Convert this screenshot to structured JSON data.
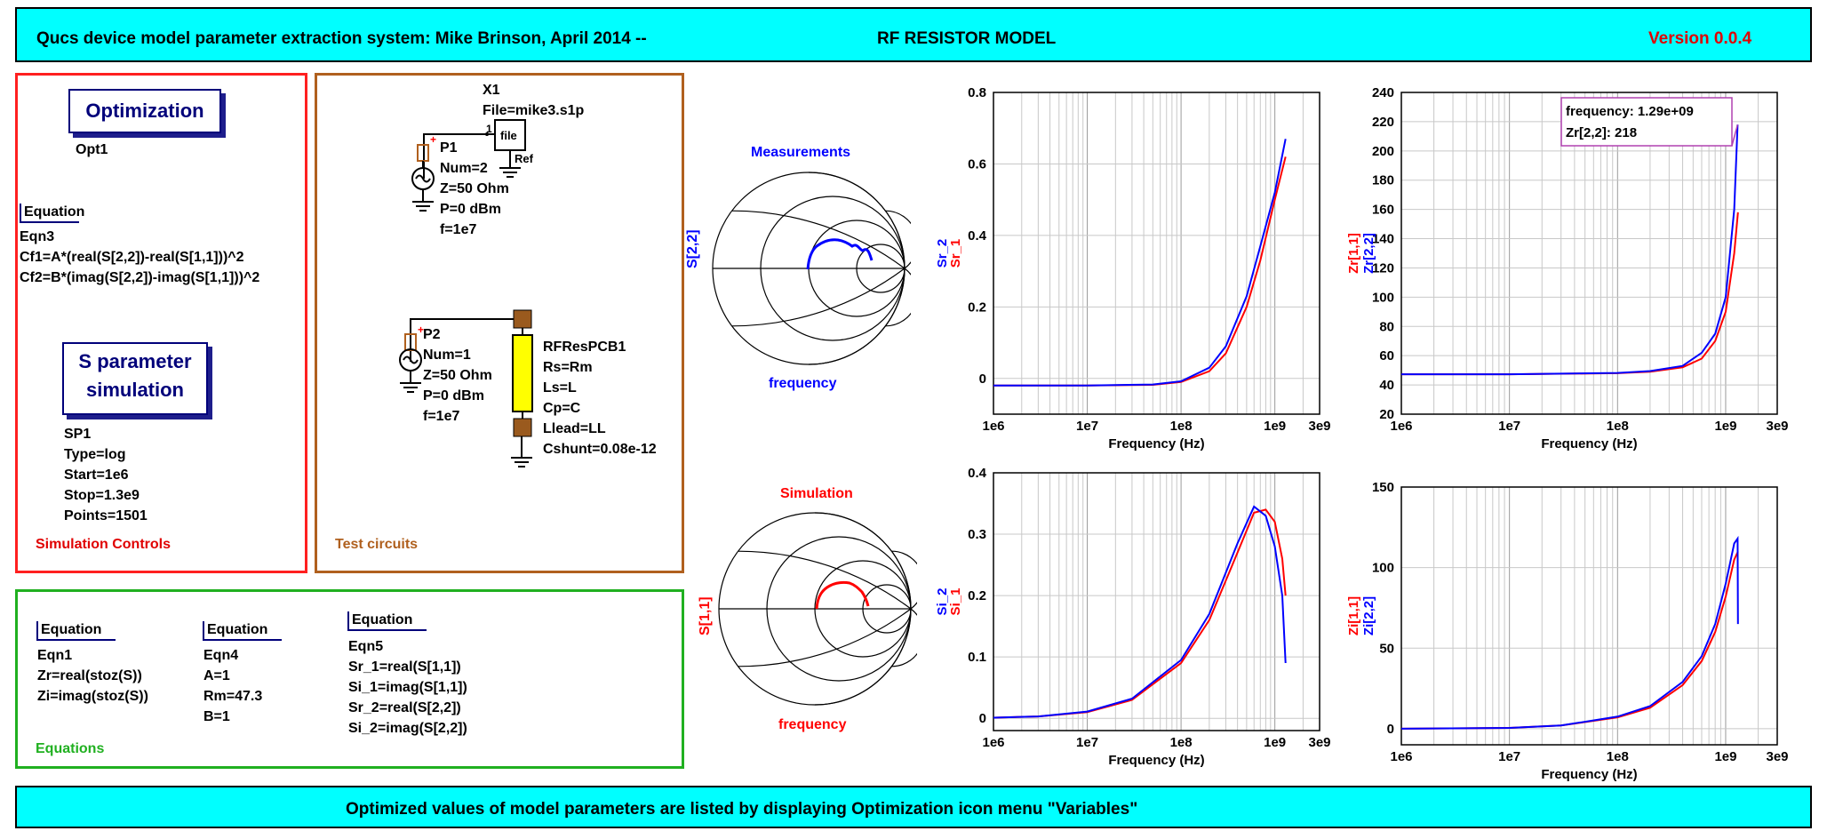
{
  "header": {
    "title": "Qucs device model parameter extraction system: Mike Brinson, April 2014 --",
    "subtitle": "RF RESISTOR MODEL",
    "version": "Version 0.0.4",
    "colors": {
      "bar": "#00ffff",
      "version": "#e00000"
    }
  },
  "footer": {
    "text": "Optimized values of model parameters are listed by displaying Optimization icon menu \"Variables\""
  },
  "sim_box": {
    "label": "Simulation Controls",
    "optimization": {
      "title": "Optimization",
      "name": "Opt1"
    },
    "equation3": {
      "head": "Equation",
      "lines": "Eqn3\nCf1=A*(real(S[2,2])-real(S[1,1]))^2\nCf2=B*(imag(S[2,2])-imag(S[1,1]))^2"
    },
    "sparam": {
      "title1": "S parameter",
      "title2": "simulation",
      "lines": "SP1\nType=log\nStart=1e6\nStop=1.3e9\nPoints=1501"
    }
  },
  "test_box": {
    "label": "Test circuits",
    "x1": "X1\nFile=mike3.s1p",
    "file_label": "file",
    "pin1": "1",
    "ref": "Ref",
    "p1": "P1\nNum=2\nZ=50 Ohm\nP=0 dBm\nf=1e7",
    "p2": "P2\nNum=1\nZ=50 Ohm\nP=0 dBm\nf=1e7",
    "rf": "RFResPCB1\nRs=Rm\nLs=L\nCp=C\nLlead=LL\nCshunt=0.08e-12"
  },
  "eq_box": {
    "label": "Equations",
    "eq1": {
      "head": "Equation",
      "lines": "Eqn1\nZr=real(stoz(S))\nZi=imag(stoz(S))"
    },
    "eq4": {
      "head": "Equation",
      "lines": "Eqn4\nA=1\nRm=47.3\nB=1"
    },
    "eq5": {
      "head": "Equation",
      "lines": "Eqn5\nSr_1=real(S[1,1])\nSi_1=imag(S[1,1])\nSr_2=real(S[2,2])\nSi_2=imag(S[2,2])"
    }
  },
  "smith_top": {
    "title": "Measurements",
    "ylabel": "S[2,2]",
    "xlabel": "frequency",
    "color": "#0000ff"
  },
  "smith_bottom": {
    "title": "Simulation",
    "ylabel": "S[1,1]",
    "xlabel": "frequency",
    "color": "#ff0000"
  },
  "chart_data": [
    {
      "id": "sr",
      "type": "line",
      "xscale": "log",
      "xlim": [
        1000000.0,
        3000000000.0
      ],
      "ylim": [
        -0.1,
        0.8
      ],
      "yticks": [
        0,
        0.2,
        0.4,
        0.6,
        0.8
      ],
      "ytick_labels": [
        "0",
        "0.2",
        "0.4",
        "0.6",
        "0.8"
      ],
      "xticks": [
        1000000.0,
        10000000.0,
        100000000.0,
        1000000000.0,
        3000000000.0
      ],
      "xtick_labels": [
        "1e6",
        "1e7",
        "1e8",
        "1e9",
        "3e9"
      ],
      "xlabel": "Frequency (Hz)",
      "ylabels": [
        "Sr_2",
        "Sr_1"
      ],
      "grid": true,
      "series": [
        {
          "name": "Sr_1",
          "color": "#ff0000",
          "x": [
            1000000.0,
            10000000.0,
            50000000.0,
            100000000.0,
            200000000.0,
            300000000.0,
            500000000.0,
            700000000.0,
            1000000000.0,
            1300000000.0
          ],
          "y": [
            -0.02,
            -0.02,
            -0.018,
            -0.01,
            0.02,
            0.07,
            0.2,
            0.33,
            0.5,
            0.62
          ]
        },
        {
          "name": "Sr_2",
          "color": "#0000ff",
          "x": [
            1000000.0,
            10000000.0,
            50000000.0,
            100000000.0,
            200000000.0,
            300000000.0,
            500000000.0,
            700000000.0,
            1000000000.0,
            1300000000.0
          ],
          "y": [
            -0.02,
            -0.02,
            -0.017,
            -0.008,
            0.03,
            0.09,
            0.23,
            0.37,
            0.52,
            0.67
          ]
        }
      ]
    },
    {
      "id": "zr",
      "type": "line",
      "xscale": "log",
      "xlim": [
        1000000.0,
        3000000000.0
      ],
      "ylim": [
        20,
        240
      ],
      "yticks": [
        20,
        40,
        60,
        80,
        100,
        120,
        140,
        160,
        180,
        200,
        220,
        240
      ],
      "ytick_labels": [
        "20",
        "40",
        "60",
        "80",
        "100",
        "120",
        "140",
        "160",
        "180",
        "200",
        "220",
        "240"
      ],
      "xticks": [
        1000000.0,
        10000000.0,
        100000000.0,
        1000000000.0,
        3000000000.0
      ],
      "xtick_labels": [
        "1e6",
        "1e7",
        "1e8",
        "1e9",
        "3e9"
      ],
      "xlabel": "Frequency (Hz)",
      "ylabels": [
        "Zr[1,1]",
        "Zr[2,2]"
      ],
      "grid": true,
      "series": [
        {
          "name": "Zr[1,1]",
          "color": "#ff0000",
          "x": [
            1000000.0,
            10000000.0,
            100000000.0,
            200000000.0,
            400000000.0,
            600000000.0,
            800000000.0,
            1000000000.0,
            1200000000.0,
            1300000000.0
          ],
          "y": [
            47.3,
            47.3,
            48,
            49,
            52,
            58,
            70,
            90,
            130,
            158
          ]
        },
        {
          "name": "Zr[2,2]",
          "color": "#0000ff",
          "x": [
            1000000.0,
            10000000.0,
            100000000.0,
            200000000.0,
            400000000.0,
            600000000.0,
            800000000.0,
            1000000000.0,
            1200000000.0,
            1290000000.0
          ],
          "y": [
            47.3,
            47.3,
            48.2,
            49.5,
            53,
            62,
            75,
            100,
            160,
            218
          ]
        }
      ],
      "marker": {
        "line1": "frequency: 1.29e+09",
        "line2": "Zr[2,2]: 218",
        "x": 1290000000.0,
        "y": 218
      }
    },
    {
      "id": "si",
      "type": "line",
      "xscale": "log",
      "xlim": [
        1000000.0,
        3000000000.0
      ],
      "ylim": [
        -0.02,
        0.4
      ],
      "yticks": [
        0,
        0.1,
        0.2,
        0.3,
        0.4
      ],
      "ytick_labels": [
        "0",
        "0.1",
        "0.2",
        "0.3",
        "0.4"
      ],
      "xticks": [
        1000000.0,
        10000000.0,
        100000000.0,
        1000000000.0,
        3000000000.0
      ],
      "xtick_labels": [
        "1e6",
        "1e7",
        "1e8",
        "1e9",
        "3e9"
      ],
      "xlabel": "Frequency (Hz)",
      "ylabels": [
        "Si_2",
        "Si_1"
      ],
      "grid": true,
      "series": [
        {
          "name": "Si_1",
          "color": "#ff0000",
          "x": [
            1000000.0,
            3000000.0,
            10000000.0,
            30000000.0,
            100000000.0,
            200000000.0,
            400000000.0,
            600000000.0,
            800000000.0,
            1000000000.0,
            1200000000.0,
            1300000000.0
          ],
          "y": [
            0.001,
            0.003,
            0.01,
            0.03,
            0.09,
            0.16,
            0.27,
            0.335,
            0.34,
            0.32,
            0.26,
            0.2
          ]
        },
        {
          "name": "Si_2",
          "color": "#0000ff",
          "x": [
            1000000.0,
            3000000.0,
            10000000.0,
            30000000.0,
            100000000.0,
            200000000.0,
            400000000.0,
            600000000.0,
            800000000.0,
            1000000000.0,
            1200000000.0,
            1300000000.0
          ],
          "y": [
            0.001,
            0.003,
            0.011,
            0.032,
            0.095,
            0.17,
            0.285,
            0.345,
            0.33,
            0.28,
            0.2,
            0.09
          ]
        }
      ]
    },
    {
      "id": "zi",
      "type": "line",
      "xscale": "log",
      "xlim": [
        1000000.0,
        3000000000.0
      ],
      "ylim": [
        -10,
        150
      ],
      "yticks": [
        0,
        50,
        100,
        150
      ],
      "ytick_labels": [
        "0",
        "50",
        "100",
        "150"
      ],
      "xticks": [
        1000000.0,
        10000000.0,
        100000000.0,
        1000000000.0,
        3000000000.0
      ],
      "xtick_labels": [
        "1e6",
        "1e7",
        "1e8",
        "1e9",
        "3e9"
      ],
      "xlabel": "Frequency (Hz)",
      "ylabels": [
        "Zi[1,1]",
        "Zi[2,2]"
      ],
      "grid": true,
      "series": [
        {
          "name": "Zi[1,1]",
          "color": "#ff0000",
          "x": [
            1000000.0,
            10000000.0,
            30000000.0,
            100000000.0,
            200000000.0,
            400000000.0,
            600000000.0,
            800000000.0,
            1000000000.0,
            1200000000.0,
            1300000000.0
          ],
          "y": [
            0,
            0.5,
            2,
            7,
            13,
            27,
            42,
            60,
            82,
            105,
            110
          ]
        },
        {
          "name": "Zi[2,2]",
          "color": "#0000ff",
          "x": [
            1000000.0,
            10000000.0,
            30000000.0,
            100000000.0,
            200000000.0,
            400000000.0,
            600000000.0,
            800000000.0,
            1000000000.0,
            1200000000.0,
            1290000000.0,
            1300000000.0
          ],
          "y": [
            0,
            0.5,
            2,
            7.5,
            14,
            29,
            45,
            65,
            90,
            115,
            118,
            65
          ]
        }
      ]
    }
  ]
}
